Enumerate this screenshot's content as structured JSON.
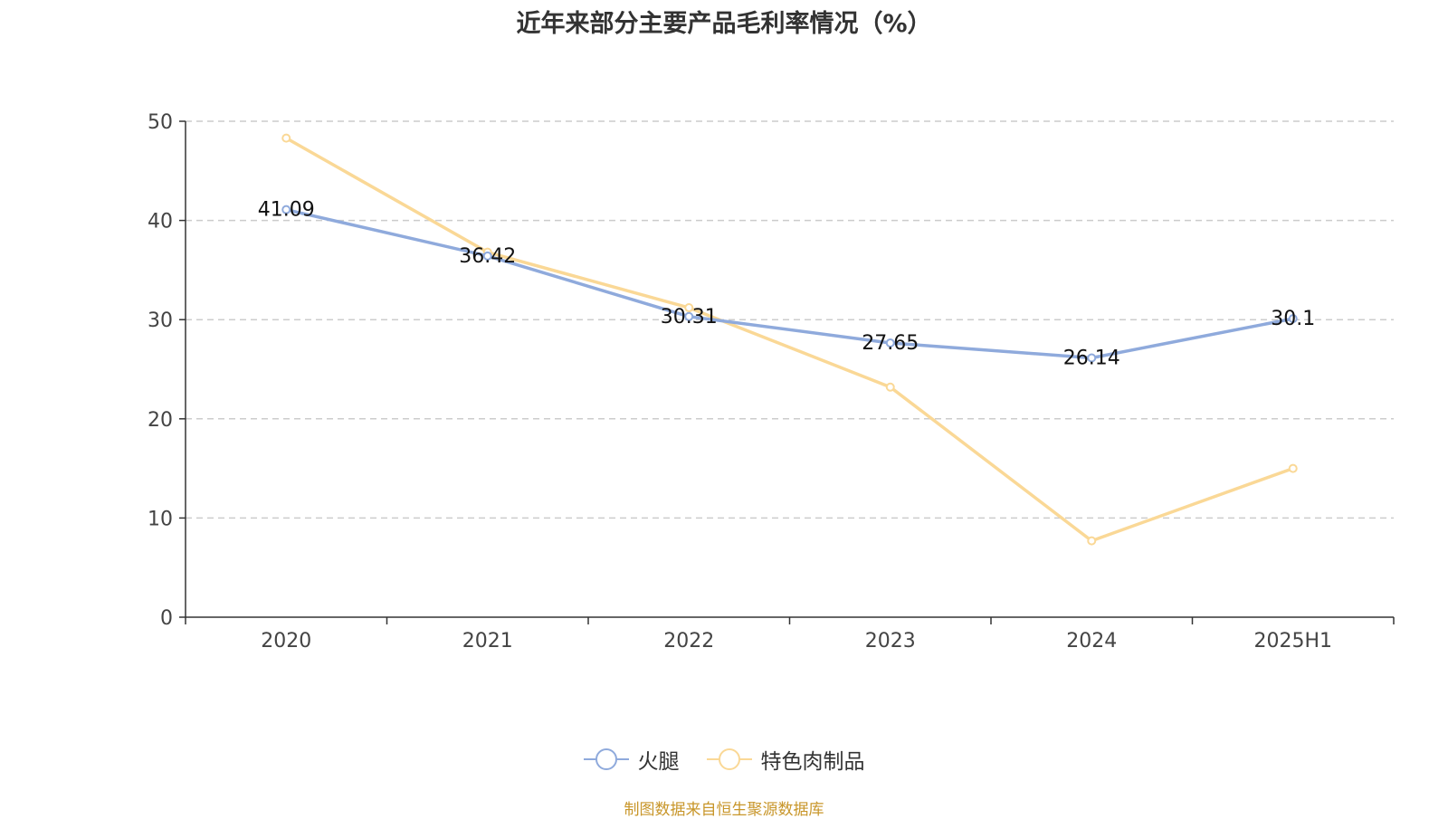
{
  "title": "近年来部分主要产品毛利率情况（%）",
  "source_note": "制图数据来自恒生聚源数据库",
  "colors": {
    "ham": "#8faadc",
    "meat": "#fad896",
    "axis": "#333333",
    "grid": "#cccccc"
  },
  "chart_data": {
    "type": "line",
    "categories": [
      "2020",
      "2021",
      "2022",
      "2023",
      "2024",
      "2025H1"
    ],
    "ylim": [
      0,
      50
    ],
    "yticks": [
      0,
      10,
      20,
      30,
      40,
      50
    ],
    "grid": true,
    "legend_position": "bottom-center",
    "series": [
      {
        "name": "火腿",
        "key": "ham",
        "values": [
          41.09,
          36.42,
          30.31,
          27.65,
          26.14,
          30.1
        ],
        "labels": [
          "41.09",
          "36.42",
          "30.31",
          "27.65",
          "26.14",
          "30.1"
        ]
      },
      {
        "name": "特色肉制品",
        "key": "meat",
        "values": [
          48.3,
          36.8,
          31.2,
          23.2,
          7.7,
          15.0
        ]
      }
    ]
  }
}
